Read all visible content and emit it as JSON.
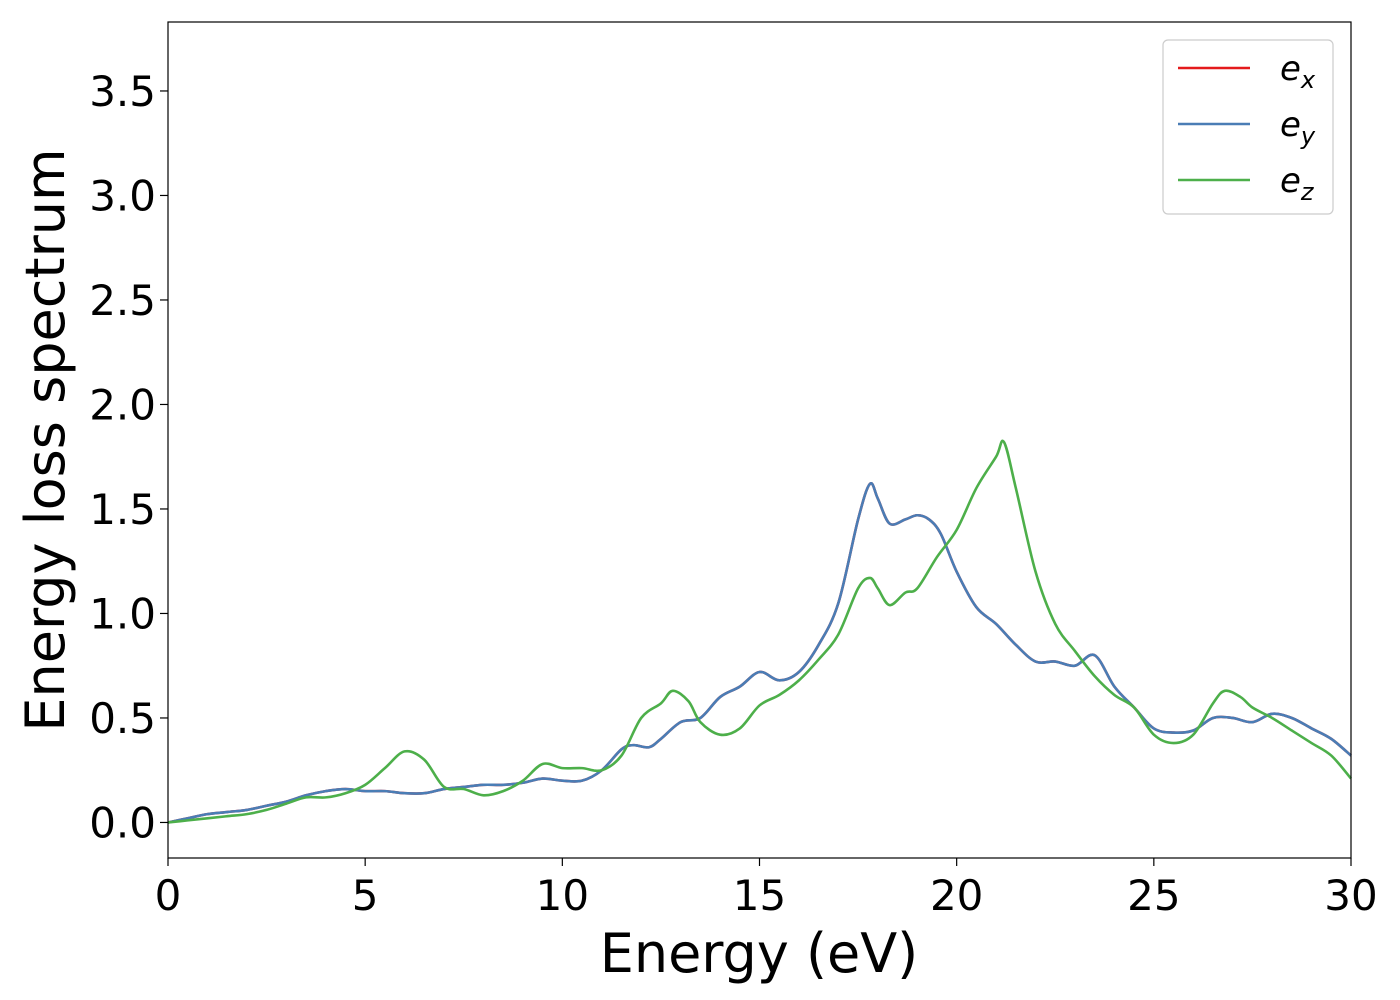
{
  "chart_data": {
    "type": "line",
    "title": "",
    "xlabel": "Energy (eV)",
    "ylabel": "Energy loss spectrum",
    "xlim": [
      0,
      30
    ],
    "ylim": [
      -0.17,
      3.83
    ],
    "xticks": [
      "0",
      "5",
      "10",
      "15",
      "20",
      "25",
      "30"
    ],
    "yticks": [
      "0.0",
      "0.5",
      "1.0",
      "1.5",
      "2.0",
      "2.5",
      "3.0",
      "3.5"
    ],
    "grid": false,
    "legend_position": "top-right",
    "series": [
      {
        "name": "e_x",
        "label_base": "e",
        "label_sub": "x",
        "color": "#e41a1c",
        "x": [
          0,
          0.5,
          1,
          1.5,
          2,
          2.5,
          3,
          3.5,
          4,
          4.5,
          5,
          5.5,
          6,
          6.5,
          7,
          7.5,
          8,
          8.5,
          9,
          9.5,
          10,
          10.5,
          11,
          11.5,
          11.8,
          12.2,
          12.5,
          13,
          13.5,
          14,
          14.5,
          15,
          15.5,
          16,
          16.5,
          17,
          17.5,
          17.8,
          18,
          18.3,
          18.7,
          19,
          19.3,
          19.6,
          20,
          20.5,
          21,
          21.5,
          22,
          22.5,
          23,
          23.5,
          24,
          24.5,
          25,
          25.5,
          26,
          26.5,
          27,
          27.5,
          28,
          28.5,
          29,
          29.5,
          30
        ],
        "y": [
          0.0,
          0.02,
          0.04,
          0.05,
          0.06,
          0.08,
          0.1,
          0.13,
          0.15,
          0.16,
          0.15,
          0.15,
          0.14,
          0.14,
          0.16,
          0.17,
          0.18,
          0.18,
          0.19,
          0.21,
          0.2,
          0.2,
          0.25,
          0.35,
          0.37,
          0.36,
          0.4,
          0.48,
          0.5,
          0.6,
          0.65,
          0.72,
          0.68,
          0.72,
          0.85,
          1.05,
          1.45,
          1.62,
          1.55,
          1.43,
          1.45,
          1.47,
          1.45,
          1.38,
          1.2,
          1.03,
          0.95,
          0.85,
          0.77,
          0.77,
          0.75,
          0.8,
          0.65,
          0.55,
          0.45,
          0.43,
          0.44,
          0.5,
          0.5,
          0.48,
          0.52,
          0.5,
          0.45,
          0.4,
          0.32
        ]
      },
      {
        "name": "e_y",
        "label_base": "e",
        "label_sub": "y",
        "color": "#4a7db5",
        "x": [
          0,
          0.5,
          1,
          1.5,
          2,
          2.5,
          3,
          3.5,
          4,
          4.5,
          5,
          5.5,
          6,
          6.5,
          7,
          7.5,
          8,
          8.5,
          9,
          9.5,
          10,
          10.5,
          11,
          11.5,
          11.8,
          12.2,
          12.5,
          13,
          13.5,
          14,
          14.5,
          15,
          15.5,
          16,
          16.5,
          17,
          17.5,
          17.8,
          18,
          18.3,
          18.7,
          19,
          19.3,
          19.6,
          20,
          20.5,
          21,
          21.5,
          22,
          22.5,
          23,
          23.5,
          24,
          24.5,
          25,
          25.5,
          26,
          26.5,
          27,
          27.5,
          28,
          28.5,
          29,
          29.5,
          30
        ],
        "y": [
          0.0,
          0.02,
          0.04,
          0.05,
          0.06,
          0.08,
          0.1,
          0.13,
          0.15,
          0.16,
          0.15,
          0.15,
          0.14,
          0.14,
          0.16,
          0.17,
          0.18,
          0.18,
          0.19,
          0.21,
          0.2,
          0.2,
          0.25,
          0.35,
          0.37,
          0.36,
          0.4,
          0.48,
          0.5,
          0.6,
          0.65,
          0.72,
          0.68,
          0.72,
          0.85,
          1.05,
          1.45,
          1.62,
          1.55,
          1.43,
          1.45,
          1.47,
          1.45,
          1.38,
          1.2,
          1.03,
          0.95,
          0.85,
          0.77,
          0.77,
          0.75,
          0.8,
          0.65,
          0.55,
          0.45,
          0.43,
          0.44,
          0.5,
          0.5,
          0.48,
          0.52,
          0.5,
          0.45,
          0.4,
          0.32
        ]
      },
      {
        "name": "e_z",
        "label_base": "e",
        "label_sub": "z",
        "color": "#4daf4a",
        "x": [
          0,
          0.5,
          1,
          1.5,
          2,
          2.5,
          3,
          3.5,
          4,
          4.5,
          5,
          5.5,
          6,
          6.5,
          7,
          7.5,
          8,
          8.5,
          9,
          9.5,
          10,
          10.5,
          11,
          11.5,
          12,
          12.5,
          12.8,
          13.2,
          13.5,
          14,
          14.5,
          15,
          15.5,
          16,
          16.5,
          17,
          17.5,
          17.8,
          18,
          18.3,
          18.7,
          19,
          19.5,
          20,
          20.5,
          21,
          21.2,
          21.5,
          22,
          22.5,
          23,
          23.5,
          24,
          24.5,
          25,
          25.5,
          26,
          26.5,
          26.8,
          27.2,
          27.5,
          28,
          28.5,
          29,
          29.5,
          30
        ],
        "y": [
          0.0,
          0.01,
          0.02,
          0.03,
          0.04,
          0.06,
          0.09,
          0.12,
          0.12,
          0.14,
          0.18,
          0.26,
          0.34,
          0.3,
          0.17,
          0.16,
          0.13,
          0.15,
          0.2,
          0.28,
          0.26,
          0.26,
          0.25,
          0.32,
          0.5,
          0.57,
          0.63,
          0.58,
          0.48,
          0.42,
          0.45,
          0.56,
          0.61,
          0.68,
          0.78,
          0.9,
          1.12,
          1.17,
          1.12,
          1.04,
          1.1,
          1.12,
          1.27,
          1.4,
          1.6,
          1.75,
          1.82,
          1.6,
          1.2,
          0.95,
          0.82,
          0.7,
          0.61,
          0.55,
          0.42,
          0.38,
          0.42,
          0.57,
          0.63,
          0.6,
          0.55,
          0.5,
          0.44,
          0.38,
          0.32,
          0.21
        ]
      }
    ]
  }
}
